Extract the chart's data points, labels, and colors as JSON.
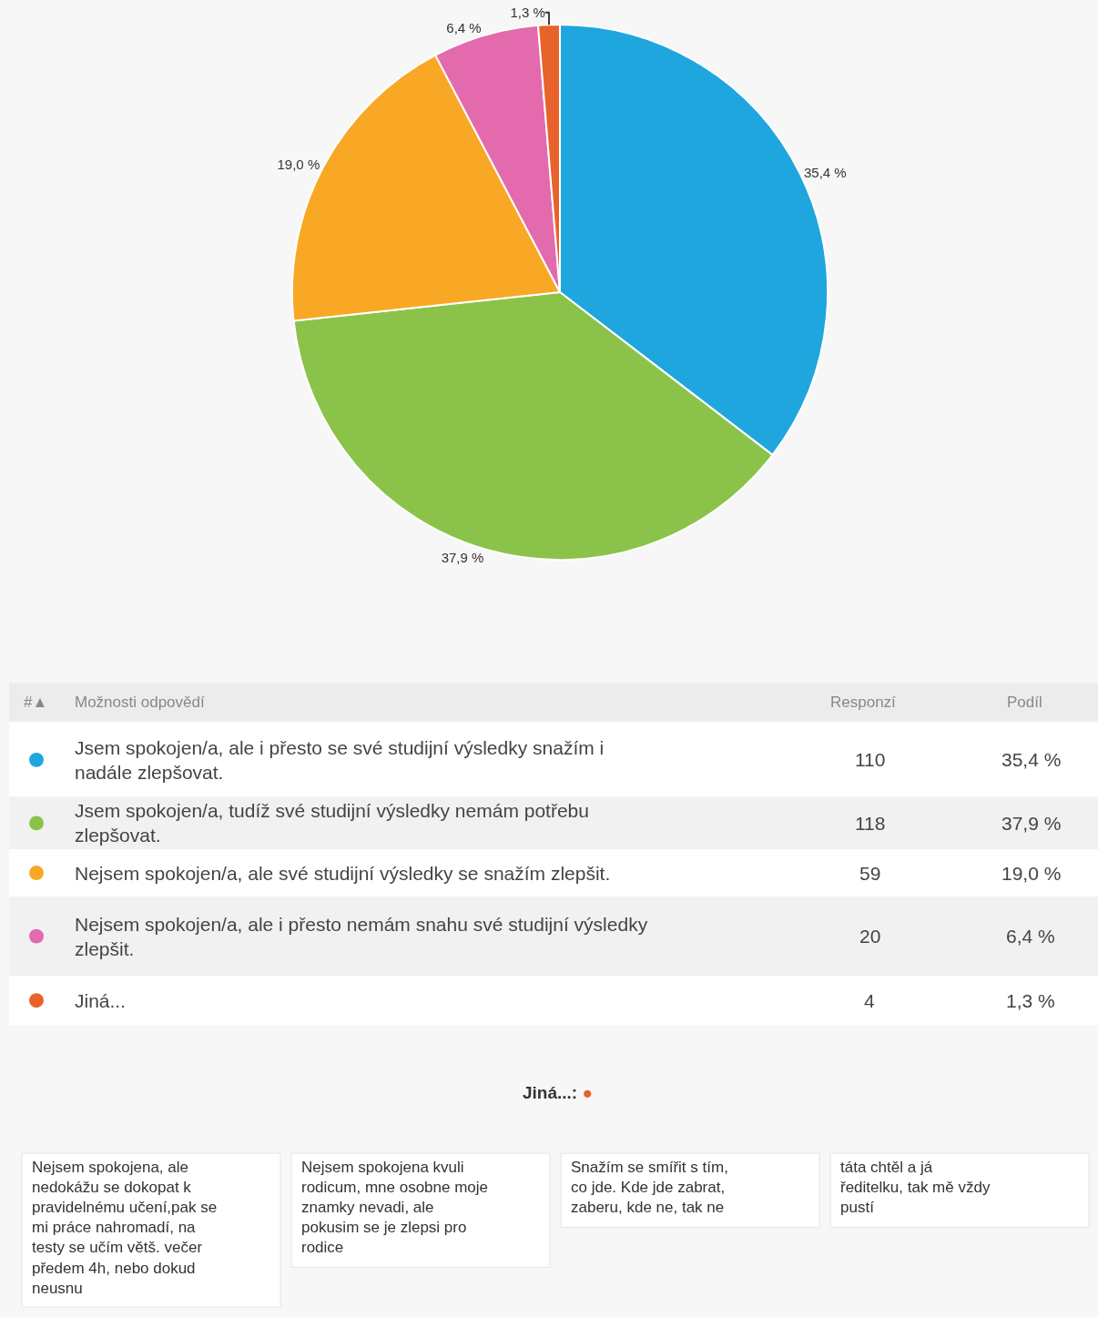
{
  "chart_data": {
    "type": "pie",
    "categories": [
      "Jsem spokojen/a, ale i přesto se své studijní výsledky snažím i nadále zlepšovat.",
      "Jsem spokojen/a, tudíž své studijní výsledky nemám potřebu zlepšovat.",
      "Nejsem spokojen/a, ale své studijní výsledky se snažím zlepšit.",
      "Nejsem spokojen/a, ale i přesto nemám snahu své studijní výsledky zlepšit.",
      "Jiná..."
    ],
    "values": [
      35.4,
      37.9,
      19.0,
      6.4,
      1.3
    ],
    "value_labels": [
      "35,4 %",
      "37,9 %",
      "19,0 %",
      "6,4 %",
      "1,3 %"
    ],
    "colors": [
      "#1fa6de",
      "#8bc34a",
      "#f9a825",
      "#e36aad",
      "#e8632b"
    ],
    "annotations": [
      "#▲",
      "Možnosti odpovědí",
      "Responzí",
      "Podíl",
      "110",
      "118",
      "59",
      "20",
      "4",
      "Jiná...: ●",
      "Nejsem spokojena, ale nedokážu se dokopat k pravidelnému učení,pak se mi práce nahromadí, na testy se učím větš. večer předem 4h, nebo dokud neusnu",
      "Nejsem spokojena kvuli rodicum, mne osobne moje znamky nevadi, ale pokusim se je zlepsi pro rodice",
      "Snažím se smířit s tím, co jde. Kde jde zabrat, zaberu, kde ne, tak ne",
      "táta chtěl a já ředitelku, tak mě vždy pustí"
    ],
    "legend": "bottom"
  }
}
